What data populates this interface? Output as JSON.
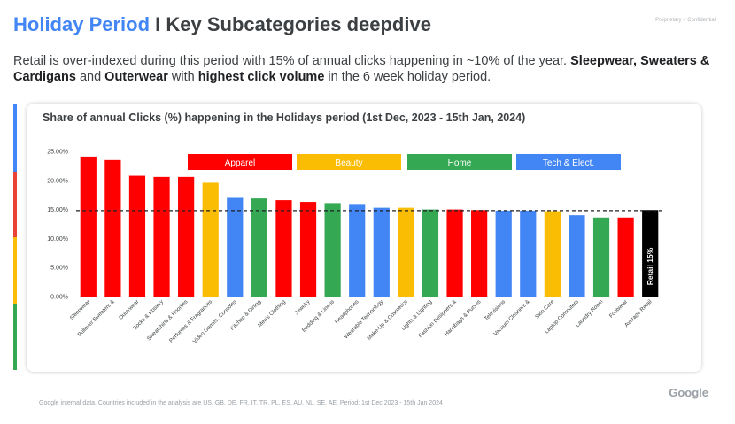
{
  "page": {
    "title_part1": "Holiday Period",
    "title_part2": " I Key Subcategories deepdive",
    "confidential": "Proprietary + Confidential",
    "subtitle_plain1": "Retail is over-indexed during this period with 15% of annual clicks happening in ~10% of the year. ",
    "subtitle_bold1": "Sleepwear, Sweaters & Cardigans",
    "subtitle_plain2": " and ",
    "subtitle_bold2": "Outerwear",
    "subtitle_plain3": " with ",
    "subtitle_bold3": "highest click volume",
    "subtitle_plain4": " in the 6 week holiday period.",
    "footer": "Google internal data. Countries included in the analysis are US, GB, DE, FR, IT, TR, PL, ES, AU, NL, SE, AE. Period: 1st Dec 2023 - 15th Jan 2024",
    "logo": "Google"
  },
  "colors": {
    "blue": "#4285F4",
    "red": "#EA4335",
    "yellow": "#FBBC04",
    "green": "#34A853",
    "apparel": "#FF0000",
    "black": "#000000"
  },
  "chart_data": {
    "type": "bar",
    "title": "Share of annual Clicks (%) happening in the Holidays period (1st Dec, 2023 - 15th Jan, 2024)",
    "ylim": [
      0,
      25
    ],
    "yticks": [
      "0.00%",
      "5.00%",
      "10.00%",
      "15.00%",
      "20.00%",
      "25.00%"
    ],
    "reference_line": 14.8,
    "legend": [
      {
        "label": "Apparel",
        "group": "apparel"
      },
      {
        "label": "Beauty",
        "group": "beauty"
      },
      {
        "label": "Home",
        "group": "home"
      },
      {
        "label": "Tech & Elect.",
        "group": "tech"
      }
    ],
    "categories": [
      "Sleepwear",
      "Pullover Sweaters &",
      "Outerwear",
      "Socks & Hosiery",
      "Sweatshirts & Hoodies",
      "Perfumes & Fragrances",
      "Video Games, Consoles",
      "Kitchen & Dining",
      "Men's Clothing",
      "Jewelry",
      "Bedding & Linens",
      "Headphones",
      "Wearable Technology",
      "Make-Up & Cosmetics",
      "Lights & Lighting",
      "Fashion Designers &",
      "Handbags & Purses",
      "Televisions",
      "Vacuum Cleaners &",
      "Skin Care",
      "Laptop Computers",
      "Laundry Room",
      "Footwear",
      "Average Retail"
    ],
    "values": [
      24.1,
      23.5,
      20.8,
      20.6,
      20.6,
      19.6,
      17.0,
      16.9,
      16.6,
      16.3,
      16.1,
      15.8,
      15.3,
      15.3,
      15.0,
      15.0,
      14.9,
      14.8,
      14.8,
      14.7,
      14.0,
      13.6,
      13.6,
      14.9
    ],
    "groups": [
      "apparel",
      "apparel",
      "apparel",
      "apparel",
      "apparel",
      "beauty",
      "tech",
      "home",
      "apparel",
      "apparel",
      "home",
      "tech",
      "tech",
      "beauty",
      "home",
      "apparel",
      "apparel",
      "tech",
      "tech",
      "beauty",
      "tech",
      "home",
      "apparel",
      "retail"
    ],
    "retail_label": "Retail 15%"
  }
}
